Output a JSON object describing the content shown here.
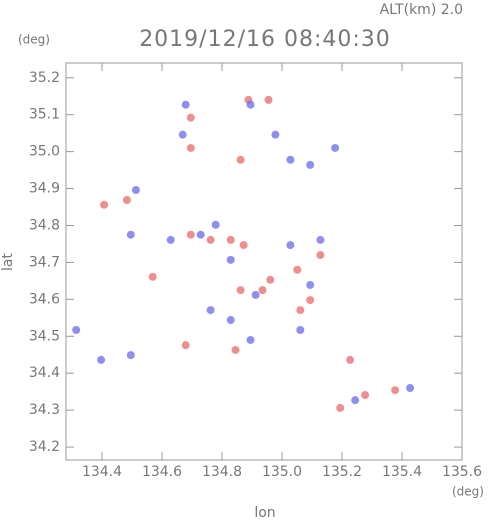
{
  "chart_data": {
    "type": "scatter",
    "title": "2019/12/16 08:40:30",
    "subtitle": "ALT(km) 2.0",
    "y_unit": "(deg)",
    "x_unit": "(deg)",
    "x_label": "lon",
    "y_label": "lat",
    "xlim": [
      134.28,
      135.6
    ],
    "ylim": [
      34.165,
      35.24
    ],
    "xticks": [
      134.4,
      134.6,
      134.8,
      {
        "value": 135,
        "label": "135.0"
      },
      135.2,
      135.4,
      135.6
    ],
    "yticks": [
      34.2,
      34.3,
      34.4,
      34.5,
      34.6,
      34.7,
      34.8,
      34.9,
      {
        "value": 35,
        "label": "35.0"
      },
      35.1,
      35.2
    ],
    "series": [
      {
        "color": "#e86a6a",
        "x": [
          134.407,
          134.483,
          134.569,
          134.696,
          134.696,
          134.888,
          134.955,
          134.862,
          134.829,
          134.872,
          134.961,
          135.051,
          135.061,
          134.935,
          134.862,
          135.227,
          135.277,
          135.377,
          135.194,
          134.679,
          135.128,
          135.094,
          134.762,
          134.696,
          134.845
        ],
        "values": [
          34.856,
          34.869,
          34.661,
          35.092,
          35.01,
          35.14,
          35.14,
          34.978,
          34.761,
          34.747,
          34.653,
          34.68,
          34.571,
          34.625,
          34.625,
          34.436,
          34.341,
          34.354,
          34.306,
          34.476,
          34.72,
          34.598,
          34.761,
          34.775,
          34.463
        ]
      },
      {
        "color": "#6a6ae8",
        "x": [
          134.679,
          134.669,
          134.895,
          134.978,
          135.028,
          135.094,
          135.177,
          134.513,
          134.496,
          134.629,
          134.729,
          134.779,
          135.128,
          134.829,
          135.028,
          134.912,
          135.094,
          134.829,
          134.895,
          134.397,
          134.496,
          134.314,
          135.427,
          135.244,
          134.762,
          135.061
        ],
        "values": [
          35.127,
          35.046,
          35.127,
          35.046,
          34.978,
          34.964,
          35.01,
          34.896,
          34.775,
          34.761,
          34.775,
          34.802,
          34.761,
          34.707,
          34.747,
          34.612,
          34.639,
          34.544,
          34.49,
          34.436,
          34.449,
          34.517,
          34.36,
          34.327,
          34.571,
          34.517
        ]
      }
    ]
  }
}
